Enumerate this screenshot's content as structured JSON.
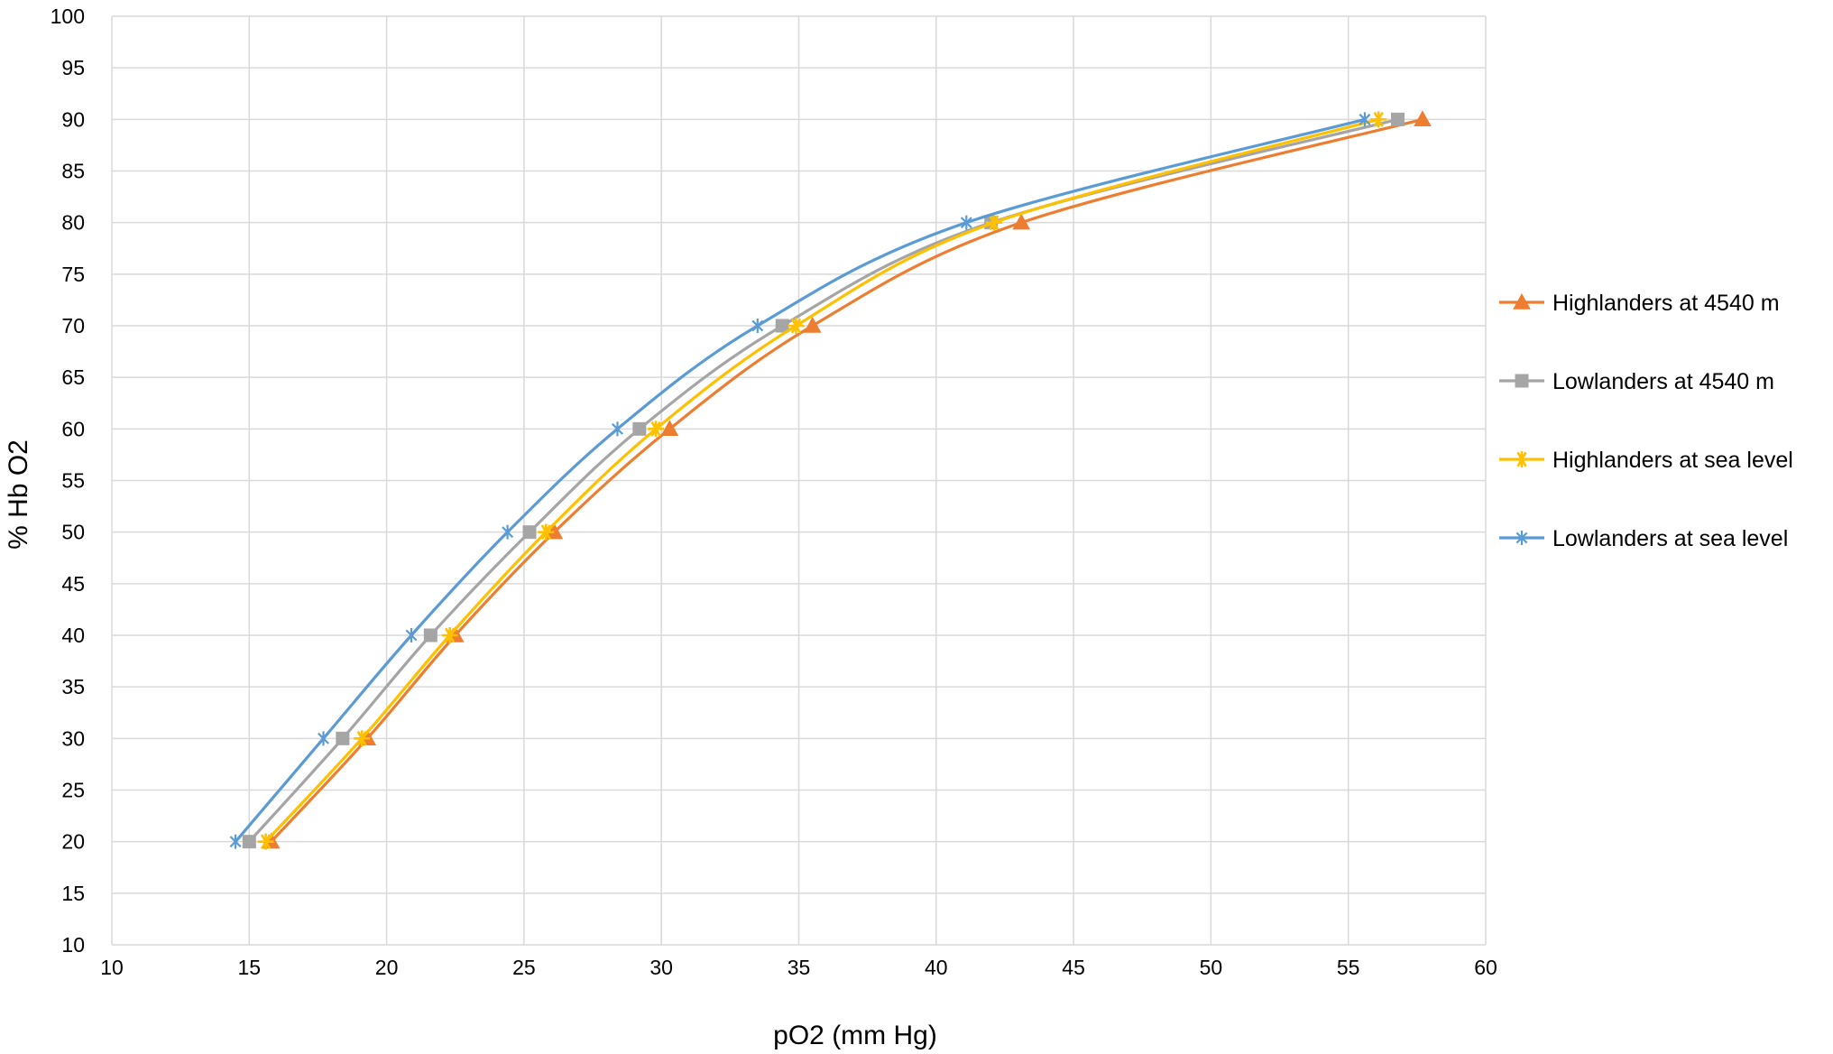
{
  "chart_data": {
    "type": "line",
    "title": "",
    "xlabel": "pO2 (mm Hg)",
    "ylabel": "% Hb O2",
    "xlim": [
      10,
      60
    ],
    "ylim": [
      10,
      100
    ],
    "x_ticks": [
      10,
      15,
      20,
      25,
      30,
      35,
      40,
      45,
      50,
      55,
      60
    ],
    "y_ticks": [
      10,
      15,
      20,
      25,
      30,
      35,
      40,
      45,
      50,
      55,
      60,
      65,
      70,
      75,
      80,
      85,
      90,
      95,
      100
    ],
    "grid": true,
    "legend_position": "right",
    "series": [
      {
        "name": "Highlanders at 4540 m",
        "color": "#ED7D31",
        "marker": "triangle",
        "points": [
          [
            15.8,
            20
          ],
          [
            19.3,
            30
          ],
          [
            22.5,
            40
          ],
          [
            26.1,
            50
          ],
          [
            30.3,
            60
          ],
          [
            35.5,
            70
          ],
          [
            43.1,
            80
          ],
          [
            57.7,
            90
          ]
        ]
      },
      {
        "name": "Lowlanders at 4540 m",
        "color": "#A5A5A5",
        "marker": "square",
        "points": [
          [
            15.0,
            20
          ],
          [
            18.4,
            30
          ],
          [
            21.6,
            40
          ],
          [
            25.2,
            50
          ],
          [
            29.2,
            60
          ],
          [
            34.4,
            70
          ],
          [
            42.0,
            80
          ],
          [
            56.8,
            90
          ]
        ]
      },
      {
        "name": "Highlanders at sea level",
        "color": "#FFC000",
        "marker": "star",
        "points": [
          [
            15.6,
            20
          ],
          [
            19.1,
            30
          ],
          [
            22.3,
            40
          ],
          [
            25.8,
            50
          ],
          [
            29.8,
            60
          ],
          [
            34.9,
            70
          ],
          [
            42.1,
            80
          ],
          [
            56.1,
            90
          ]
        ]
      },
      {
        "name": "Lowlanders at sea level",
        "color": "#5B9BD5",
        "marker": "asterisk",
        "points": [
          [
            14.5,
            20
          ],
          [
            17.7,
            30
          ],
          [
            20.9,
            40
          ],
          [
            24.4,
            50
          ],
          [
            28.4,
            60
          ],
          [
            33.5,
            70
          ],
          [
            41.1,
            80
          ],
          [
            55.6,
            90
          ]
        ]
      }
    ]
  }
}
